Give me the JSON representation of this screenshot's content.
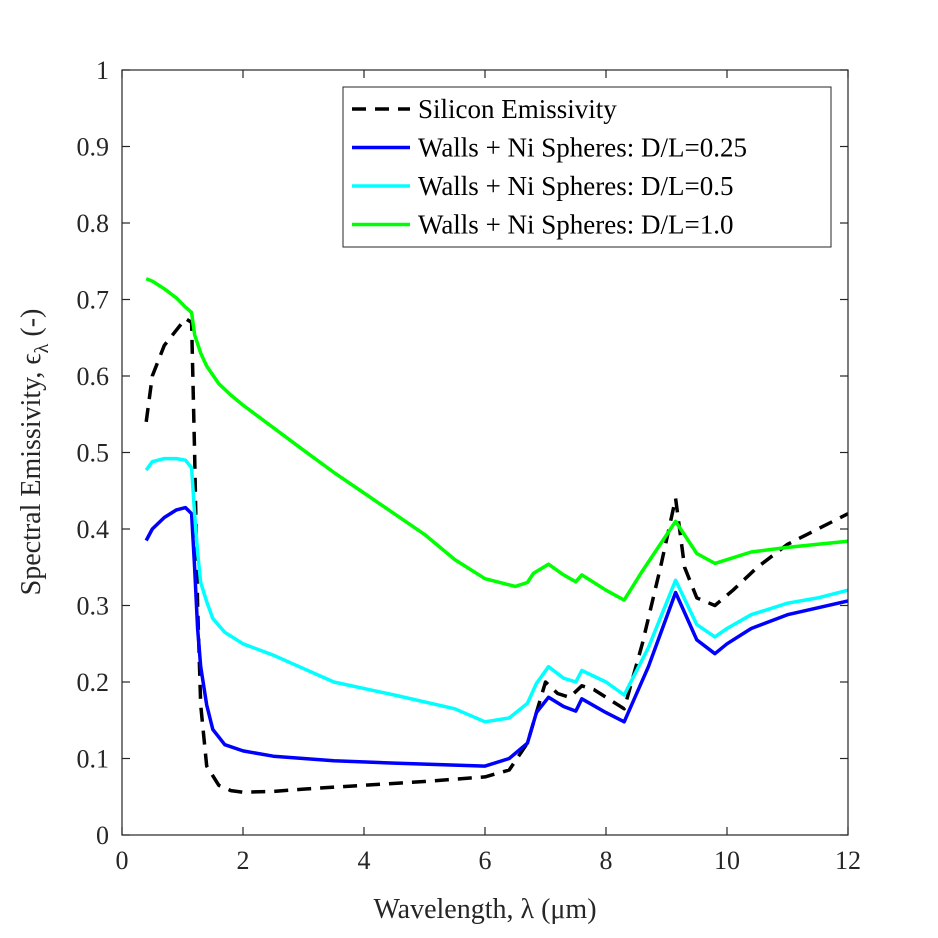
{
  "chart_data": {
    "type": "line",
    "xlabel": "Wavelength, λ (μm)",
    "ylabel": "Spectral Emissivity, ϵ",
    "ylabel_sub": "λ",
    "ylabel_suffix": " (-)",
    "xlim": [
      0,
      12
    ],
    "ylim": [
      0,
      1
    ],
    "xticks": [
      0,
      2,
      4,
      6,
      8,
      10,
      12
    ],
    "xtick_labels": [
      "0",
      "2",
      "4",
      "6",
      "8",
      "10",
      "12"
    ],
    "yticks": [
      0,
      0.1,
      0.2,
      0.3,
      0.4,
      0.5,
      0.6,
      0.7,
      0.8,
      0.9,
      1
    ],
    "ytick_labels": [
      "0",
      "0.1",
      "0.2",
      "0.3",
      "0.4",
      "0.5",
      "0.6",
      "0.7",
      "0.8",
      "0.9",
      "1"
    ],
    "grid": false,
    "legend_position": "top-right",
    "series": [
      {
        "name": "Silicon Emissivity",
        "color": "#000000",
        "dash": true,
        "x": [
          0.4,
          0.5,
          0.7,
          0.9,
          1.05,
          1.15,
          1.2,
          1.25,
          1.3,
          1.4,
          1.6,
          1.8,
          2.0,
          2.5,
          3.0,
          4.0,
          5.0,
          6.0,
          6.4,
          6.7,
          6.85,
          7.0,
          7.2,
          7.4,
          7.6,
          7.8,
          8.0,
          8.3,
          8.6,
          8.9,
          9.15,
          9.3,
          9.5,
          9.8,
          10.1,
          10.5,
          11.0,
          11.5,
          12.0
        ],
        "y": [
          0.54,
          0.6,
          0.64,
          0.66,
          0.675,
          0.67,
          0.5,
          0.3,
          0.17,
          0.09,
          0.065,
          0.058,
          0.056,
          0.057,
          0.06,
          0.065,
          0.07,
          0.076,
          0.085,
          0.12,
          0.16,
          0.2,
          0.185,
          0.18,
          0.195,
          0.19,
          0.18,
          0.165,
          0.25,
          0.35,
          0.44,
          0.35,
          0.31,
          0.3,
          0.32,
          0.35,
          0.38,
          0.4,
          0.42
        ]
      },
      {
        "name": "Walls + Ni Spheres: D/L=0.25",
        "color": "#0000ff",
        "dash": false,
        "x": [
          0.4,
          0.5,
          0.7,
          0.9,
          1.05,
          1.15,
          1.2,
          1.25,
          1.3,
          1.4,
          1.5,
          1.7,
          2.0,
          2.5,
          3.5,
          4.5,
          6.0,
          6.4,
          6.7,
          6.85,
          7.05,
          7.3,
          7.5,
          7.6,
          8.0,
          8.3,
          8.7,
          9.15,
          9.5,
          9.8,
          10.0,
          10.4,
          11.0,
          11.5,
          12.0
        ],
        "y": [
          0.385,
          0.4,
          0.415,
          0.425,
          0.428,
          0.42,
          0.35,
          0.27,
          0.22,
          0.17,
          0.138,
          0.118,
          0.11,
          0.103,
          0.097,
          0.094,
          0.09,
          0.1,
          0.12,
          0.16,
          0.18,
          0.168,
          0.162,
          0.178,
          0.16,
          0.148,
          0.22,
          0.317,
          0.255,
          0.237,
          0.25,
          0.27,
          0.288,
          0.297,
          0.306
        ]
      },
      {
        "name": "Walls + Ni Spheres: D/L=0.5",
        "color": "#00ffff",
        "dash": false,
        "x": [
          0.4,
          0.5,
          0.7,
          0.9,
          1.05,
          1.15,
          1.2,
          1.25,
          1.3,
          1.4,
          1.5,
          1.7,
          2.0,
          2.5,
          3.5,
          4.5,
          5.5,
          6.0,
          6.4,
          6.7,
          6.85,
          7.05,
          7.3,
          7.5,
          7.6,
          8.0,
          8.3,
          8.7,
          9.15,
          9.5,
          9.8,
          10.0,
          10.4,
          11.0,
          11.5,
          12.0
        ],
        "y": [
          0.477,
          0.488,
          0.492,
          0.492,
          0.49,
          0.48,
          0.42,
          0.37,
          0.33,
          0.305,
          0.283,
          0.265,
          0.25,
          0.235,
          0.2,
          0.183,
          0.165,
          0.148,
          0.153,
          0.172,
          0.198,
          0.22,
          0.205,
          0.2,
          0.215,
          0.2,
          0.183,
          0.245,
          0.333,
          0.275,
          0.259,
          0.27,
          0.288,
          0.303,
          0.31,
          0.32
        ]
      },
      {
        "name": "Walls + Ni Spheres: D/L=1.0",
        "color": "#00ff00",
        "dash": false,
        "x": [
          0.4,
          0.5,
          0.7,
          0.9,
          1.05,
          1.15,
          1.2,
          1.3,
          1.4,
          1.6,
          1.8,
          2.0,
          3.0,
          3.5,
          4.0,
          5.0,
          5.5,
          6.0,
          6.5,
          6.7,
          6.8,
          7.05,
          7.3,
          7.5,
          7.6,
          8.0,
          8.3,
          8.6,
          9.15,
          9.5,
          9.8,
          10.4,
          11.0,
          11.5,
          12.0
        ],
        "y": [
          0.727,
          0.724,
          0.714,
          0.702,
          0.69,
          0.683,
          0.654,
          0.63,
          0.613,
          0.59,
          0.575,
          0.562,
          0.503,
          0.474,
          0.447,
          0.393,
          0.36,
          0.335,
          0.325,
          0.33,
          0.342,
          0.354,
          0.34,
          0.331,
          0.34,
          0.32,
          0.307,
          0.345,
          0.41,
          0.368,
          0.355,
          0.37,
          0.376,
          0.38,
          0.384
        ]
      }
    ]
  }
}
